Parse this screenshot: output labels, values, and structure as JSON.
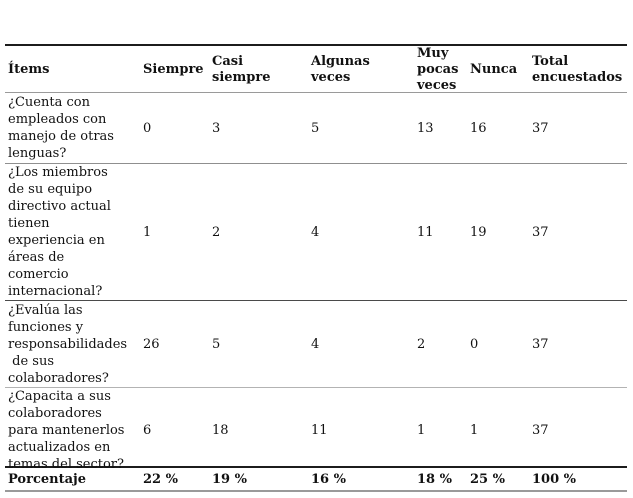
{
  "table": {
    "columns": [
      "Ítems",
      "Siempre",
      "Casi\nsiempre",
      "Algunas\nveces",
      "Muy\npocas\nveces",
      "Nunca",
      "Total\nencuestados"
    ],
    "rows": [
      {
        "item": "¿Cuenta con\nempleados con\nmanejo de otras\nlenguas?",
        "values": [
          "0",
          "3",
          "5",
          "13",
          "16",
          "37"
        ]
      },
      {
        "item": "¿Los miembros\nde su equipo\ndirectivo actual\ntienen\nexperiencia en\náreas de\ncomercio\ninternacional?",
        "values": [
          "1",
          "2",
          "4",
          "11",
          "19",
          "37"
        ]
      },
      {
        "item": "¿Evalúa las\nfunciones y\nresponsabilidades\n de sus\ncolaboradores?",
        "values": [
          "26",
          "5",
          "4",
          "2",
          "0",
          "37"
        ]
      },
      {
        "item": "¿Capacita a sus\ncolaboradores\npara mantenerlos\nactualizados en\ntemas del sector?",
        "values": [
          "6",
          "18",
          "11",
          "1",
          "1",
          "37"
        ]
      }
    ],
    "footer": {
      "label": "Porcentaje",
      "values": [
        "22 %",
        "19 %",
        "16 %",
        "18 %",
        "25 %",
        "100 %"
      ]
    }
  },
  "colors": {
    "text": "#111111",
    "rule_dark": "#1c1c1c",
    "rule_light": "#9a9a9a",
    "background": "#ffffff"
  }
}
